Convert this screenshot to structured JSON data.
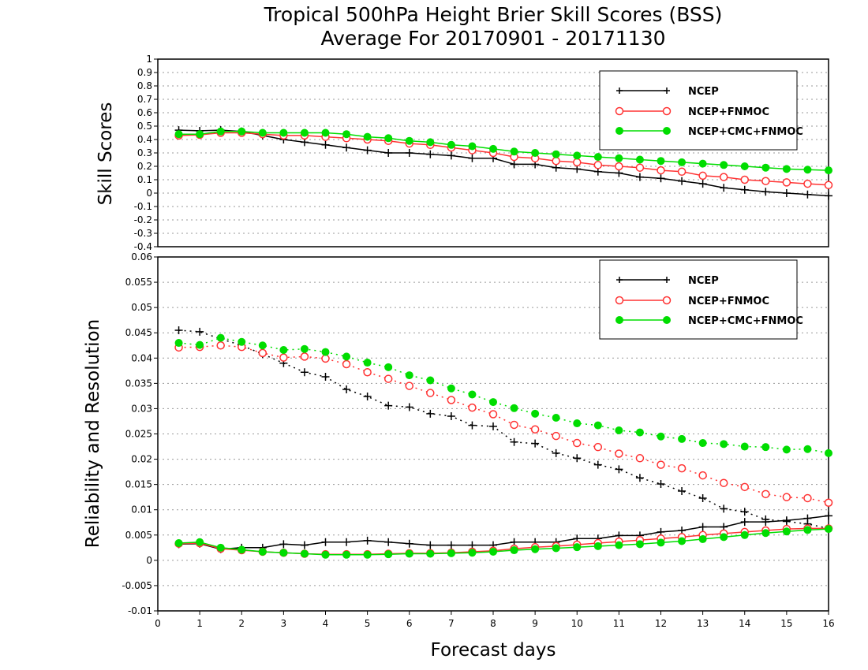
{
  "title_line1": "Tropical 500hPa Height Brier Skill Scores (BSS)",
  "title_line2": "Average For 20170901 - 20171130",
  "colors": {
    "NCEP": "#000000",
    "NCEP+FNMOC": "#ff3333",
    "NCEP+CMC+FNMOC": "#00dd00"
  },
  "chart_data": [
    {
      "type": "line",
      "ylabel": "Skill Scores",
      "xlabel": "",
      "xlim": [
        0,
        16
      ],
      "ylim": [
        -0.4,
        1
      ],
      "grid": true,
      "legend_position": "top-right",
      "x_ticks": [
        "0",
        "1",
        "2",
        "3",
        "4",
        "5",
        "6",
        "7",
        "8",
        "9",
        "10",
        "11",
        "12",
        "13",
        "14",
        "15",
        "16"
      ],
      "y_ticks": [
        "-0.4",
        "-0.3",
        "-0.2",
        "-0.1",
        "0",
        "0.1",
        "0.2",
        "0.3",
        "0.4",
        "0.5",
        "0.6",
        "0.7",
        "0.8",
        "0.9",
        "1"
      ],
      "x": [
        0.5,
        1,
        1.5,
        2,
        2.5,
        3,
        3.5,
        4,
        4.5,
        5,
        5.5,
        6,
        6.5,
        7,
        7.5,
        8,
        8.5,
        9,
        9.5,
        10,
        10.5,
        11,
        11.5,
        12,
        12.5,
        13,
        13.5,
        14,
        14.5,
        15,
        15.5,
        16
      ],
      "series": [
        {
          "name": "NCEP",
          "style": "solid",
          "marker": "plus",
          "values": [
            0.47,
            0.465,
            0.47,
            0.46,
            0.43,
            0.4,
            0.38,
            0.36,
            0.34,
            0.32,
            0.3,
            0.3,
            0.29,
            0.28,
            0.26,
            0.26,
            0.215,
            0.215,
            0.19,
            0.18,
            0.16,
            0.15,
            0.12,
            0.11,
            0.09,
            0.07,
            0.04,
            0.025,
            0.01,
            0.0,
            -0.01,
            -0.02
          ]
        },
        {
          "name": "NCEP+FNMOC",
          "style": "solid",
          "marker": "open-circle",
          "values": [
            0.43,
            0.435,
            0.45,
            0.45,
            0.44,
            0.43,
            0.43,
            0.42,
            0.41,
            0.4,
            0.39,
            0.37,
            0.36,
            0.34,
            0.32,
            0.3,
            0.27,
            0.26,
            0.24,
            0.23,
            0.21,
            0.2,
            0.19,
            0.17,
            0.16,
            0.13,
            0.12,
            0.1,
            0.09,
            0.08,
            0.07,
            0.06
          ]
        },
        {
          "name": "NCEP+CMC+FNMOC",
          "style": "solid",
          "marker": "filled-circle",
          "values": [
            0.44,
            0.44,
            0.46,
            0.46,
            0.45,
            0.45,
            0.45,
            0.45,
            0.44,
            0.42,
            0.41,
            0.39,
            0.38,
            0.36,
            0.35,
            0.33,
            0.31,
            0.3,
            0.29,
            0.28,
            0.27,
            0.26,
            0.25,
            0.24,
            0.23,
            0.22,
            0.21,
            0.2,
            0.19,
            0.18,
            0.175,
            0.17
          ]
        }
      ]
    },
    {
      "type": "line",
      "ylabel": "Reliability and Resolution",
      "xlabel": "Forecast days",
      "xlim": [
        0,
        16
      ],
      "ylim": [
        -0.01,
        0.06
      ],
      "grid": true,
      "legend_position": "top-right",
      "x_ticks": [
        "0",
        "1",
        "2",
        "3",
        "4",
        "5",
        "6",
        "7",
        "8",
        "9",
        "10",
        "11",
        "12",
        "13",
        "14",
        "15",
        "16"
      ],
      "y_ticks": [
        "-0.01",
        "-0.005",
        "0",
        "0.005",
        "0.01",
        "0.015",
        "0.02",
        "0.025",
        "0.03",
        "0.035",
        "0.04",
        "0.045",
        "0.05",
        "0.055",
        "0.06"
      ],
      "x": [
        0.5,
        1,
        1.5,
        2,
        2.5,
        3,
        3.5,
        4,
        4.5,
        5,
        5.5,
        6,
        6.5,
        7,
        7.5,
        8,
        8.5,
        9,
        9.5,
        10,
        10.5,
        11,
        11.5,
        12,
        12.5,
        13,
        13.5,
        14,
        14.5,
        15,
        15.5,
        16
      ],
      "series": [
        {
          "name": "NCEP",
          "style": "dotted",
          "marker": "plus",
          "values": [
            0.0455,
            0.0452,
            0.0438,
            0.0425,
            0.0408,
            0.039,
            0.0372,
            0.0363,
            0.0338,
            0.0324,
            0.0306,
            0.0303,
            0.029,
            0.0285,
            0.0267,
            0.0265,
            0.0234,
            0.0231,
            0.0212,
            0.0202,
            0.0189,
            0.018,
            0.0163,
            0.0151,
            0.0137,
            0.0123,
            0.0102,
            0.0096,
            0.0081,
            0.0077,
            0.0072,
            0.0063
          ]
        },
        {
          "name": "NCEP+FNMOC",
          "style": "dotted",
          "marker": "open-circle",
          "values": [
            0.0421,
            0.0422,
            0.0425,
            0.0422,
            0.041,
            0.0401,
            0.0403,
            0.0399,
            0.0388,
            0.0372,
            0.0359,
            0.0345,
            0.0331,
            0.0317,
            0.0302,
            0.0289,
            0.0268,
            0.0259,
            0.0246,
            0.0232,
            0.0224,
            0.0211,
            0.0202,
            0.0189,
            0.0182,
            0.0168,
            0.0153,
            0.0145,
            0.0131,
            0.0125,
            0.0123,
            0.0114
          ]
        },
        {
          "name": "NCEP+CMC+FNMOC",
          "style": "dotted",
          "marker": "filled-circle",
          "values": [
            0.043,
            0.0426,
            0.044,
            0.0432,
            0.0425,
            0.0416,
            0.0418,
            0.0412,
            0.0403,
            0.0391,
            0.0382,
            0.0366,
            0.0356,
            0.034,
            0.0328,
            0.0313,
            0.0301,
            0.029,
            0.0282,
            0.0271,
            0.0267,
            0.0257,
            0.0253,
            0.0245,
            0.024,
            0.0232,
            0.023,
            0.0225,
            0.0224,
            0.0219,
            0.022,
            0.0212
          ]
        },
        {
          "name": "NCEP",
          "style": "solid",
          "marker": "plus",
          "values": [
            0.0032,
            0.0033,
            0.0022,
            0.0025,
            0.0025,
            0.0032,
            0.003,
            0.0036,
            0.0036,
            0.0039,
            0.0036,
            0.0033,
            0.003,
            0.003,
            0.003,
            0.003,
            0.0036,
            0.0036,
            0.0036,
            0.0043,
            0.0043,
            0.0049,
            0.0049,
            0.0056,
            0.0059,
            0.0066,
            0.0066,
            0.0076,
            0.0076,
            0.0079,
            0.0083,
            0.0088
          ]
        },
        {
          "name": "NCEP+FNMOC",
          "style": "solid",
          "marker": "open-circle",
          "values": [
            0.0033,
            0.0034,
            0.0023,
            0.002,
            0.0017,
            0.0015,
            0.0013,
            0.0012,
            0.0012,
            0.0012,
            0.0013,
            0.0014,
            0.0014,
            0.0015,
            0.0017,
            0.0019,
            0.0023,
            0.0026,
            0.0028,
            0.0031,
            0.0034,
            0.0037,
            0.004,
            0.0043,
            0.0046,
            0.005,
            0.0053,
            0.0056,
            0.0059,
            0.0062,
            0.0063,
            0.0063
          ]
        },
        {
          "name": "NCEP+CMC+FNMOC",
          "style": "solid",
          "marker": "filled-circle",
          "values": [
            0.0034,
            0.0036,
            0.0025,
            0.0021,
            0.0017,
            0.0015,
            0.0013,
            0.0011,
            0.0011,
            0.0011,
            0.0012,
            0.0013,
            0.0013,
            0.0014,
            0.0015,
            0.0017,
            0.002,
            0.0022,
            0.0024,
            0.0026,
            0.0028,
            0.003,
            0.0032,
            0.0035,
            0.0038,
            0.0042,
            0.0046,
            0.005,
            0.0054,
            0.0057,
            0.006,
            0.0062
          ]
        }
      ]
    }
  ]
}
